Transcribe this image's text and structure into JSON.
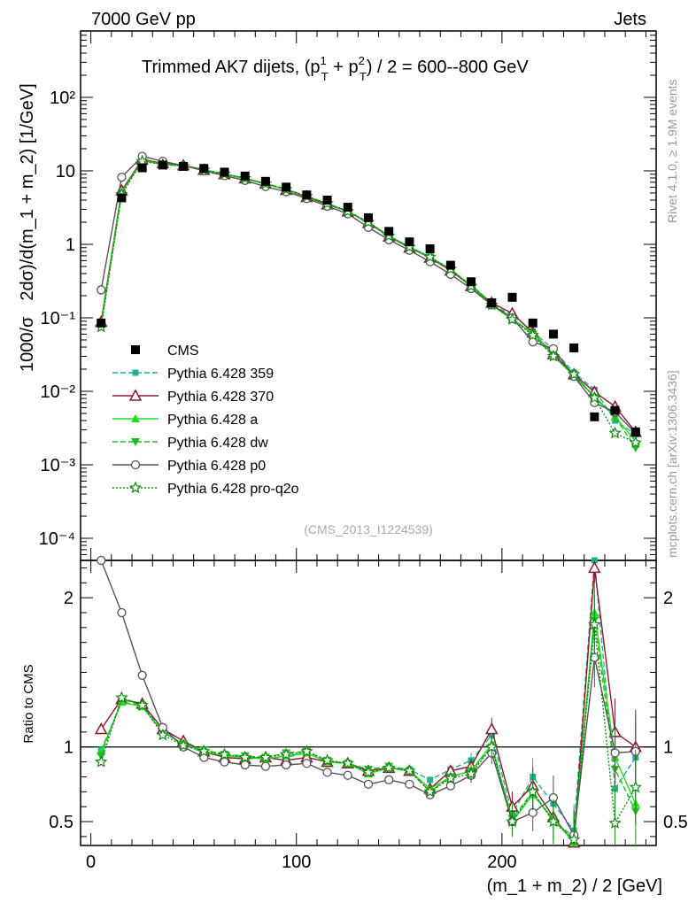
{
  "header": {
    "left": "7000 GeV pp",
    "right": "Jets"
  },
  "side": {
    "rivet": "Rivet 4.1.0, ≥ 1.9M events",
    "mcplots": "mcplots.cern.ch [arXiv:1306.3436]"
  },
  "chart_data": {
    "type": "scatter",
    "title_parts": {
      "a": "Trimmed AK7 dijets, (p",
      "b": " + p",
      "c": ") / 2 = 600--800 GeV",
      "sup1": "1",
      "sup2": "2",
      "sub": "T"
    },
    "ylabel": "1000/σ  2dσ)/d(m_1 + m_2) [1/GeV]",
    "ylabel_parts": {
      "left": "1000/σ",
      "right": "2dσ)/d(m_1 + m_2) [1/GeV]"
    },
    "xlabel": "(m_1 + m_2) / 2 [GeV]",
    "ratio_ylabel": "Ratio to CMS",
    "analysis_tag": "(CMS_2013_I1224539)",
    "xlim": [
      -5,
      275
    ],
    "ylim_log": [
      5e-05,
      800
    ],
    "ratio_ylim": [
      0.34,
      2.25
    ],
    "x_ticks": [
      0,
      100,
      200
    ],
    "main_y_tick_labels": [
      "10⁻⁴",
      "10⁻³",
      "10⁻²",
      "10⁻¹",
      "1",
      "10",
      "10²"
    ],
    "ratio_y_ticks": [
      0.5,
      1,
      2
    ],
    "x": [
      5,
      15,
      25,
      35,
      45,
      55,
      65,
      75,
      85,
      95,
      105,
      115,
      125,
      135,
      145,
      155,
      165,
      175,
      185,
      195,
      205,
      215,
      225,
      235,
      245,
      255,
      265
    ],
    "cms": [
      0.085,
      4.3,
      11,
      12,
      11.5,
      10.8,
      9.6,
      8.5,
      7.2,
      6.0,
      4.7,
      4.0,
      3.2,
      2.3,
      1.5,
      1.08,
      0.87,
      0.52,
      0.31,
      0.16,
      0.19,
      0.085,
      0.06,
      0.039,
      0.0045,
      0.0055,
      0.0028
    ],
    "series": [
      {
        "name": "Pythia 6.428 359",
        "color": "#20b090",
        "dash": "6,3",
        "marker": "square",
        "values": [
          0.083,
          5.2,
          14.0,
          12.5,
          11.8,
          10.3,
          9.0,
          7.9,
          6.7,
          5.6,
          4.5,
          3.6,
          2.85,
          2.0,
          1.3,
          0.92,
          0.68,
          0.44,
          0.27,
          0.15,
          0.11,
          0.065,
          0.037,
          0.018,
          0.0105,
          0.004,
          0.0026
        ],
        "ratio": [
          0.98,
          1.3,
          1.28,
          1.1,
          1.02,
          0.96,
          0.94,
          0.93,
          0.93,
          0.93,
          0.96,
          0.9,
          0.89,
          0.85,
          0.87,
          0.85,
          0.78,
          0.85,
          0.91,
          1.08,
          0.55,
          0.8,
          0.62,
          0.44,
          2.35,
          0.72,
          0.93
        ]
      },
      {
        "name": "Pythia 6.428 370",
        "color": "#8b1a2b",
        "dash": "",
        "marker": "triangle-open",
        "values": [
          0.088,
          5.4,
          14.2,
          12.7,
          11.9,
          10.3,
          9.0,
          7.9,
          6.7,
          5.5,
          4.4,
          3.5,
          2.8,
          1.95,
          1.28,
          0.9,
          0.66,
          0.44,
          0.27,
          0.16,
          0.115,
          0.063,
          0.032,
          0.017,
          0.0098,
          0.0062,
          0.0028
        ],
        "ratio": [
          1.12,
          1.32,
          1.29,
          1.12,
          1.04,
          0.97,
          0.93,
          0.92,
          0.93,
          0.91,
          0.93,
          0.9,
          0.89,
          0.84,
          0.86,
          0.84,
          0.72,
          0.84,
          0.87,
          1.12,
          0.6,
          0.74,
          0.53,
          0.36,
          2.2,
          1.1,
          1.0
        ]
      },
      {
        "name": "Pythia 6.428 a",
        "color": "#22dd22",
        "dash": "",
        "marker": "triangle",
        "values": [
          0.082,
          5.1,
          13.8,
          12.4,
          11.7,
          10.2,
          9.1,
          7.8,
          6.6,
          5.6,
          4.5,
          3.6,
          2.8,
          2.0,
          1.3,
          0.92,
          0.67,
          0.46,
          0.27,
          0.15,
          0.095,
          0.063,
          0.031,
          0.016,
          0.0085,
          0.0045,
          0.0021
        ],
        "ratio": [
          0.97,
          1.3,
          1.27,
          1.1,
          1.02,
          0.97,
          0.94,
          0.93,
          0.92,
          0.94,
          0.96,
          0.9,
          0.89,
          0.82,
          0.86,
          0.84,
          0.72,
          0.8,
          0.84,
          1.02,
          0.5,
          0.68,
          0.52,
          0.36,
          1.9,
          0.93,
          0.62
        ]
      },
      {
        "name": "Pythia 6.428 dw",
        "color": "#22bb22",
        "dash": "6,3",
        "marker": "triangle-down",
        "values": [
          0.08,
          5.0,
          13.7,
          12.3,
          11.6,
          10.3,
          9.1,
          7.9,
          6.7,
          5.7,
          4.5,
          3.6,
          2.8,
          2.0,
          1.3,
          0.91,
          0.67,
          0.45,
          0.28,
          0.16,
          0.098,
          0.06,
          0.03,
          0.017,
          0.0083,
          0.0045,
          0.0017
        ],
        "ratio": [
          0.94,
          1.32,
          1.28,
          1.1,
          1.02,
          0.98,
          0.95,
          0.94,
          0.93,
          0.96,
          0.97,
          0.91,
          0.89,
          0.85,
          0.87,
          0.84,
          0.7,
          0.8,
          0.84,
          1.0,
          0.52,
          0.7,
          0.5,
          0.4,
          1.85,
          0.85,
          0.57
        ]
      },
      {
        "name": "Pythia 6.428 p0",
        "color": "#555555",
        "dash": "",
        "marker": "circle-open",
        "values": [
          0.24,
          8.2,
          15.8,
          13.5,
          11.8,
          10.0,
          8.6,
          7.4,
          6.1,
          5.2,
          4.2,
          3.3,
          2.6,
          1.7,
          1.15,
          0.83,
          0.58,
          0.39,
          0.25,
          0.15,
          0.1,
          0.047,
          0.038,
          0.016,
          0.007,
          0.0052,
          0.0027
        ],
        "ratio": [
          2.8,
          1.9,
          1.48,
          1.13,
          1.0,
          0.93,
          0.9,
          0.88,
          0.87,
          0.88,
          0.89,
          0.83,
          0.81,
          0.75,
          0.78,
          0.75,
          0.68,
          0.74,
          0.81,
          0.96,
          0.5,
          0.56,
          0.66,
          0.41,
          1.6,
          0.96,
          0.97
        ]
      },
      {
        "name": "Pythia 6.428 pro-q2o",
        "color": "#118811",
        "dash": "2,2",
        "marker": "star",
        "values": [
          0.075,
          4.8,
          13.5,
          12.2,
          11.6,
          10.3,
          9.1,
          7.9,
          6.7,
          5.6,
          4.5,
          3.6,
          2.8,
          2.0,
          1.3,
          0.92,
          0.67,
          0.46,
          0.27,
          0.15,
          0.095,
          0.058,
          0.03,
          0.017,
          0.0082,
          0.0027,
          0.002
        ],
        "ratio": [
          0.9,
          1.33,
          1.28,
          1.08,
          1.01,
          0.97,
          0.95,
          0.93,
          0.93,
          0.95,
          0.97,
          0.91,
          0.89,
          0.83,
          0.86,
          0.84,
          0.7,
          0.79,
          0.82,
          1.0,
          0.5,
          0.7,
          0.5,
          0.38,
          1.82,
          0.49,
          0.73
        ]
      }
    ],
    "legend": [
      "CMS",
      "Pythia 6.428 359",
      "Pythia 6.428 370",
      "Pythia 6.428 a",
      "Pythia 6.428 dw",
      "Pythia 6.428 p0",
      "Pythia 6.428 pro-q2o"
    ]
  }
}
